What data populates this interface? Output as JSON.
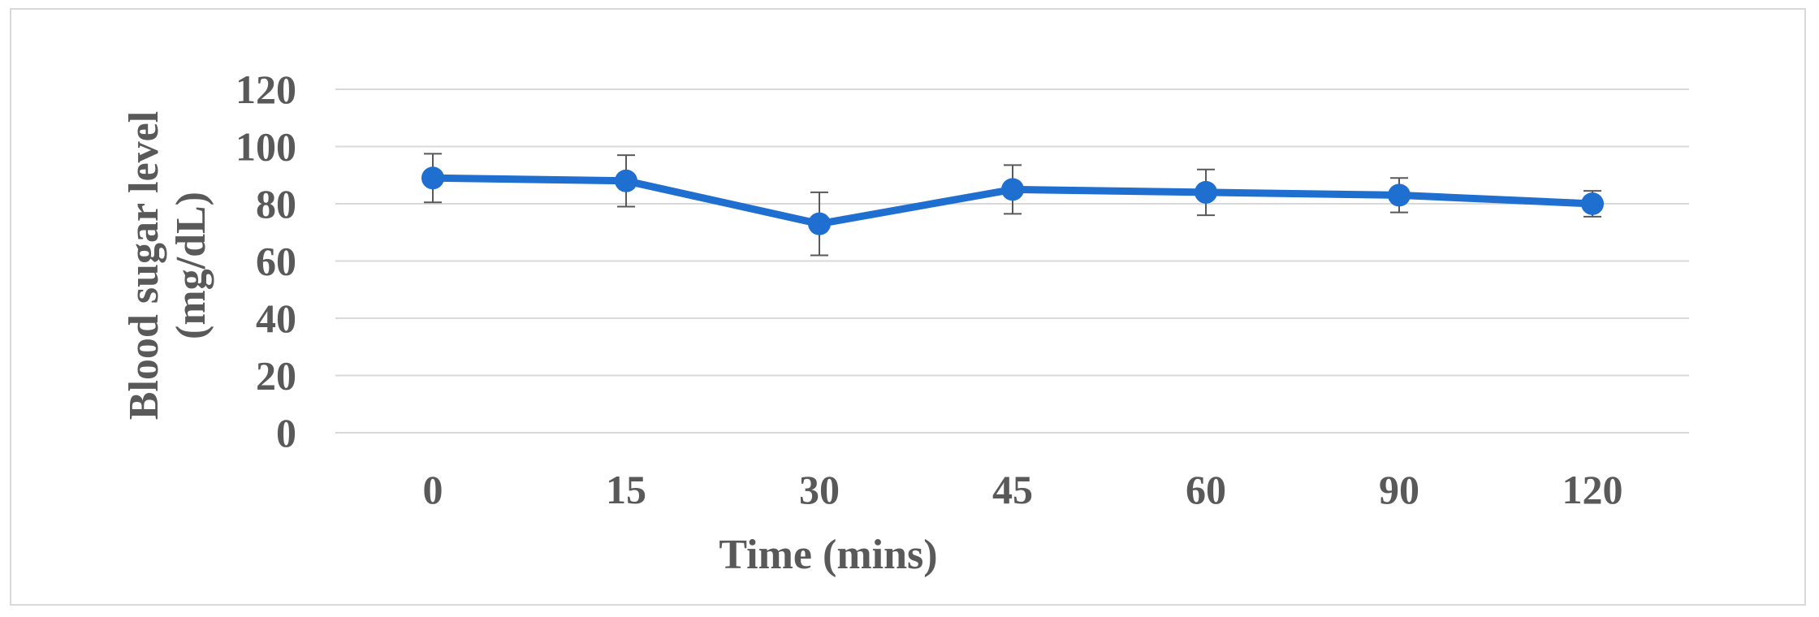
{
  "chart_data": {
    "type": "line",
    "categories": [
      "0",
      "15",
      "30",
      "45",
      "60",
      "90",
      "120"
    ],
    "series": [
      {
        "values": [
          89,
          88,
          73,
          85,
          84,
          83,
          80
        ],
        "error": [
          8.5,
          9,
          11,
          8.5,
          8,
          6,
          4.5
        ],
        "color": "#1f6fd0"
      }
    ],
    "xlabel": "Time (mins)",
    "ylabel_lines": [
      "Blood sugar level",
      "(mg/dL)"
    ],
    "ylim": [
      0,
      120
    ],
    "yticks": [
      0,
      20,
      40,
      60,
      80,
      100,
      120
    ],
    "grid": true,
    "legend": "none"
  },
  "colors": {
    "grid": "#d9d9d9",
    "text": "#595959",
    "series": "#1f6fd0",
    "error_bar": "#595959"
  }
}
